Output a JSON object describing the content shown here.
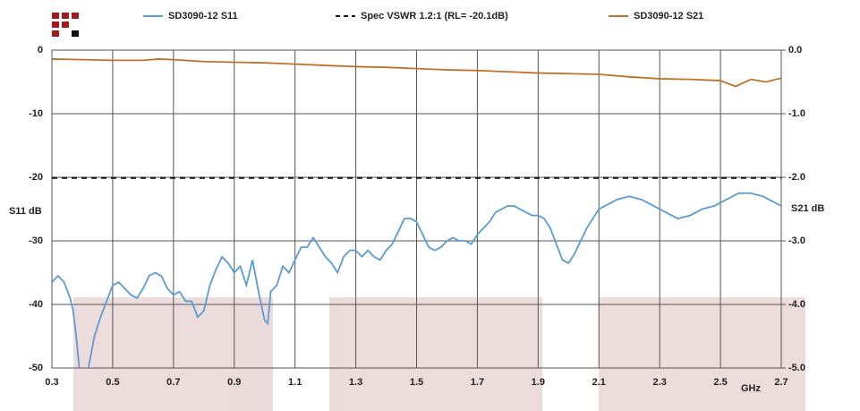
{
  "chart_data": {
    "type": "line",
    "x_label": "GHz",
    "y_label": "S11 dB",
    "y2_label": "S21 dB",
    "x": [
      0.3,
      0.32,
      0.34,
      0.36,
      0.37,
      0.38,
      0.39,
      0.4,
      0.42,
      0.44,
      0.46,
      0.48,
      0.5,
      0.52,
      0.54,
      0.56,
      0.58,
      0.6,
      0.62,
      0.64,
      0.66,
      0.68,
      0.7,
      0.72,
      0.74,
      0.76,
      0.78,
      0.8,
      0.82,
      0.84,
      0.86,
      0.88,
      0.9,
      0.92,
      0.94,
      0.96,
      0.98,
      1.0,
      1.01,
      1.02,
      1.04,
      1.06,
      1.08,
      1.1,
      1.12,
      1.14,
      1.16,
      1.18,
      1.2,
      1.22,
      1.24,
      1.26,
      1.28,
      1.3,
      1.32,
      1.34,
      1.36,
      1.38,
      1.4,
      1.42,
      1.44,
      1.46,
      1.48,
      1.5,
      1.52,
      1.54,
      1.56,
      1.58,
      1.6,
      1.62,
      1.64,
      1.66,
      1.68,
      1.7,
      1.72,
      1.74,
      1.76,
      1.78,
      1.8,
      1.82,
      1.84,
      1.86,
      1.88,
      1.9,
      1.92,
      1.94,
      1.96,
      1.98,
      2.0,
      2.02,
      2.04,
      2.06,
      2.08,
      2.1,
      2.12,
      2.16,
      2.2,
      2.24,
      2.28,
      2.32,
      2.36,
      2.4,
      2.44,
      2.48,
      2.52,
      2.56,
      2.6,
      2.64,
      2.68,
      2.7
    ],
    "series": [
      {
        "name": "SD3090-12 S11",
        "color": "#5b9bd5",
        "dash": false,
        "values": [
          -36.5,
          -35.5,
          -36.5,
          -39,
          -41,
          -45,
          -50,
          -53,
          -50,
          -45,
          -42,
          -39.5,
          -37,
          -36.5,
          -37.5,
          -38.5,
          -39,
          -37.5,
          -35.5,
          -35,
          -35.5,
          -37.5,
          -38.5,
          -38,
          -39.5,
          -39.5,
          -42,
          -41,
          -37,
          -34.5,
          -32.5,
          -33.5,
          -35,
          -34,
          -37,
          -33,
          -38,
          -42.5,
          -43,
          -38,
          -37,
          -34,
          -35,
          -33,
          -31,
          -31,
          -29.5,
          -31,
          -32.5,
          -33.5,
          -35,
          -32.5,
          -31.5,
          -31.5,
          -32.5,
          -31.5,
          -32.5,
          -33,
          -31.5,
          -30.5,
          -28.5,
          -26.5,
          -26.5,
          -27,
          -29,
          -31,
          -31.5,
          -31,
          -30,
          -29.5,
          -30,
          -30,
          -30.5,
          -29,
          -28,
          -27,
          -25.5,
          -25,
          -24.5,
          -24.5,
          -25,
          -25.5,
          -26,
          -26,
          -26.5,
          -28,
          -30.5,
          -33,
          -33.5,
          -32,
          -30,
          -28,
          -26.5,
          -25,
          -24.5,
          -23.5,
          -23,
          -23.5,
          -24.5,
          -25.5,
          -26.5,
          -26,
          -25,
          -24.5,
          -23.5,
          -22.5,
          -22.5,
          -23,
          -24,
          -24.5
        ]
      },
      {
        "name": "Spec VSWR 1.2:1 (RL= -20.1dB)",
        "color": "#111111",
        "dash": true,
        "x": [
          0.3,
          2.7
        ],
        "values": [
          -20.1,
          -20.1
        ]
      },
      {
        "name": "SD3090-12 S21",
        "color": "#c0722a",
        "dash": false,
        "axis": "y2",
        "x": [
          0.3,
          0.4,
          0.5,
          0.6,
          0.65,
          0.7,
          0.8,
          0.9,
          1.0,
          1.1,
          1.2,
          1.3,
          1.4,
          1.5,
          1.6,
          1.7,
          1.8,
          1.9,
          2.0,
          2.1,
          2.2,
          2.3,
          2.4,
          2.5,
          2.55,
          2.6,
          2.65,
          2.7
        ],
        "values": [
          -0.14,
          -0.15,
          -0.16,
          -0.16,
          -0.14,
          -0.15,
          -0.18,
          -0.19,
          -0.2,
          -0.22,
          -0.24,
          -0.26,
          -0.27,
          -0.29,
          -0.31,
          -0.32,
          -0.34,
          -0.36,
          -0.37,
          -0.38,
          -0.42,
          -0.45,
          -0.46,
          -0.48,
          -0.57,
          -0.46,
          -0.5,
          -0.44
        ]
      }
    ],
    "xlim": [
      0.3,
      2.7
    ],
    "xticks": [
      0.3,
      0.5,
      0.7,
      0.9,
      1.1,
      1.3,
      1.5,
      1.7,
      1.9,
      2.1,
      2.3,
      2.5,
      2.7
    ],
    "ylim": [
      -50,
      0
    ],
    "yticks": [
      -50,
      -40,
      -30,
      -20,
      -10,
      0
    ],
    "y2lim": [
      -5,
      0
    ],
    "y2ticks": [
      {
        "value": -5,
        "label": "-5.0"
      },
      {
        "value": -4,
        "label": "-4.0"
      },
      {
        "value": -3,
        "label": "-3.0"
      },
      {
        "value": -2,
        "label": "-2.0"
      },
      {
        "value": -1,
        "label": "-1.0"
      },
      {
        "value": 0,
        "label": "0.0"
      }
    ],
    "grid": true
  }
}
